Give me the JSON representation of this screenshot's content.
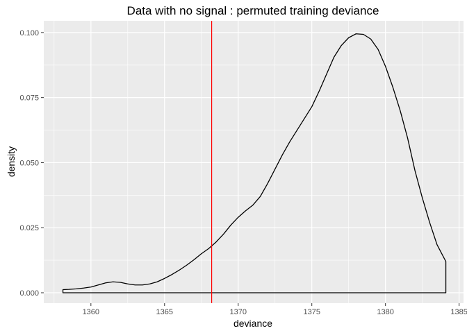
{
  "chart_data": {
    "type": "density",
    "title": "Data with no signal : permuted training deviance",
    "xlabel": "deviance",
    "ylabel": "density",
    "xlim": [
      1356.8,
      1385.3
    ],
    "ylim": [
      -0.004,
      0.1045
    ],
    "x_ticks": [
      1360,
      1365,
      1370,
      1375,
      1380,
      1385
    ],
    "x_tick_labels": [
      "1360",
      "1365",
      "1370",
      "1375",
      "1380",
      "1385"
    ],
    "y_ticks": [
      0.0,
      0.025,
      0.05,
      0.075,
      0.1
    ],
    "y_tick_labels": [
      "0.000",
      "0.025",
      "0.050",
      "0.075",
      "0.100"
    ],
    "grid": true,
    "legend": "none",
    "colors": {
      "panel": "#ebebeb",
      "grid": "#ffffff",
      "density_line": "#000000",
      "reference_line": "#ff0000"
    },
    "reference_line": {
      "x": 1368.2
    },
    "series": [
      {
        "x": [
          1358.1,
          1358.5,
          1359.0,
          1359.5,
          1360.0,
          1360.5,
          1361.0,
          1361.5,
          1362.0,
          1362.5,
          1363.0,
          1363.5,
          1364.0,
          1364.5,
          1365.0,
          1365.5,
          1366.0,
          1366.5,
          1367.0,
          1367.5,
          1368.0,
          1368.5,
          1369.0,
          1369.5,
          1370.0,
          1370.5,
          1371.0,
          1371.5,
          1372.0,
          1372.5,
          1373.0,
          1373.5,
          1374.0,
          1374.5,
          1375.0,
          1375.5,
          1376.0,
          1376.5,
          1377.0,
          1377.5,
          1378.0,
          1378.5,
          1379.0,
          1379.5,
          1380.0,
          1380.5,
          1381.0,
          1381.5,
          1382.0,
          1382.5,
          1383.0,
          1383.5,
          1384.1
        ],
        "y": [
          0.0012,
          0.0013,
          0.0015,
          0.0018,
          0.0022,
          0.003,
          0.0038,
          0.0042,
          0.004,
          0.0034,
          0.003,
          0.003,
          0.0034,
          0.0042,
          0.0055,
          0.007,
          0.0087,
          0.0106,
          0.0127,
          0.015,
          0.017,
          0.0195,
          0.0225,
          0.026,
          0.029,
          0.0315,
          0.0337,
          0.037,
          0.042,
          0.0475,
          0.053,
          0.058,
          0.0625,
          0.067,
          0.0715,
          0.0775,
          0.084,
          0.0905,
          0.095,
          0.098,
          0.0995,
          0.0993,
          0.0975,
          0.0935,
          0.087,
          0.079,
          0.07,
          0.0595,
          0.047,
          0.0365,
          0.027,
          0.0185,
          0.012
        ]
      }
    ]
  }
}
